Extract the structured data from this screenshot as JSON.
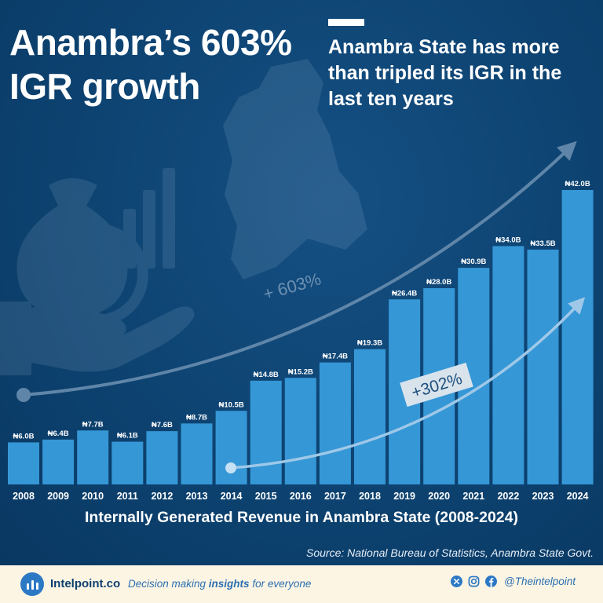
{
  "headline": "Anambra’s 603% IGR growth",
  "subheadline": "Anambra State has more than tripled its IGR in the last ten years",
  "source": "Source: National Bureau of Statistics, Anambra State Govt.",
  "colors": {
    "background": "#0e4574",
    "bar": "#3597d6",
    "footer": "#fdf5e4",
    "accent": "#2b78c4"
  },
  "icons": [
    "money-bag-icon",
    "naira-coin-icon",
    "hand-icon",
    "growth-bars-icon",
    "anambra-map-icon"
  ],
  "chart_data": {
    "type": "bar",
    "title": "Internally Generated Revenue in Anambra State (2008-2024)",
    "categories": [
      "2008",
      "2009",
      "2010",
      "2011",
      "2012",
      "2013",
      "2014",
      "2015",
      "2016",
      "2017",
      "2018",
      "2019",
      "2020",
      "2021",
      "2022",
      "2023",
      "2024"
    ],
    "values": [
      6.0,
      6.4,
      7.7,
      6.1,
      7.6,
      8.7,
      10.5,
      14.8,
      15.2,
      17.4,
      19.3,
      26.4,
      28.0,
      30.9,
      34.0,
      33.5,
      42.0
    ],
    "labels": [
      "₦6.0B",
      "₦6.4B",
      "₦7.7B",
      "₦6.1B",
      "₦7.6B",
      "₦8.7B",
      "₦10.5B",
      "₦14.8B",
      "₦15.2B",
      "₦17.4B",
      "₦19.3B",
      "₦26.4B",
      "₦28.0B",
      "₦30.9B",
      "₦34.0B",
      "₦33.5B",
      "₦42.0B"
    ],
    "ylim": [
      0,
      42
    ],
    "grid": false,
    "annotations": [
      {
        "text": "+ 603%",
        "from": "2008",
        "to": "2024"
      },
      {
        "text": "+302%",
        "from": "2014",
        "to": "2024"
      }
    ]
  },
  "footer": {
    "brand": "Intelpoint.co",
    "tagline_pre": "Decision making ",
    "tagline_em": "insights",
    "tagline_post": " for everyone",
    "handle": "@Theintelpoint",
    "social_icons": [
      "x-icon",
      "instagram-icon",
      "facebook-icon"
    ]
  }
}
